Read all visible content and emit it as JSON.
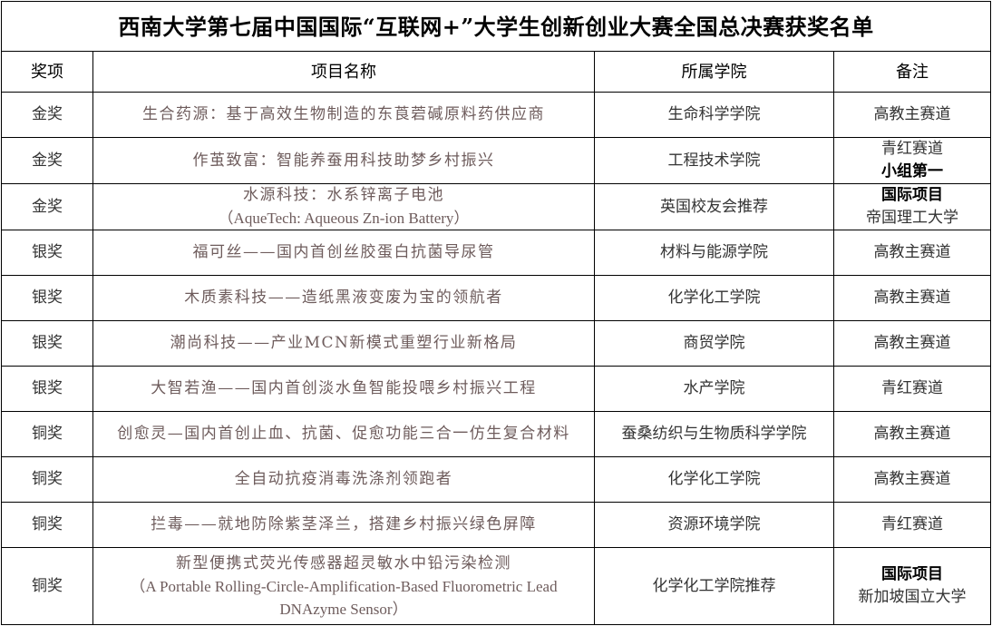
{
  "title": "西南大学第七届中国国际“互联网+”大学生创新创业大赛全国总决赛获奖名单",
  "headers": [
    "奖项",
    "项目名称",
    "所属学院",
    "备注"
  ],
  "rows": [
    {
      "award": "金奖",
      "project": "生合药源：基于高效生物制造的东莨菪碱原料药供应商",
      "project_en": "",
      "college": "生命科学学院",
      "note": "高教主赛道",
      "note2": ""
    },
    {
      "award": "金奖",
      "project": "作茧致富：智能养蚕用科技助梦乡村振兴",
      "project_en": "",
      "college": "工程技术学院",
      "note": "青红赛道",
      "note2": "小组第一"
    },
    {
      "award": "金奖",
      "project": "水源科技：水系锌离子电池",
      "project_en": "（AqueTech: Aqueous Zn-ion Battery）",
      "college": "英国校友会推荐",
      "note": "国际项目",
      "note2": "帝国理工大学"
    },
    {
      "award": "银奖",
      "project": "福可丝——国内首创丝胶蛋白抗菌导尿管",
      "project_en": "",
      "college": "材料与能源学院",
      "note": "高教主赛道",
      "note2": ""
    },
    {
      "award": "银奖",
      "project": "木质素科技——造纸黑液变废为宝的领航者",
      "project_en": "",
      "college": "化学化工学院",
      "note": "高教主赛道",
      "note2": ""
    },
    {
      "award": "银奖",
      "project": "潮尚科技——产业MCN新模式重塑行业新格局",
      "project_en": "",
      "college": "商贸学院",
      "note": "高教主赛道",
      "note2": ""
    },
    {
      "award": "银奖",
      "project": "大智若渔——国内首创淡水鱼智能投喂乡村振兴工程",
      "project_en": "",
      "college": "水产学院",
      "note": "青红赛道",
      "note2": ""
    },
    {
      "award": "铜奖",
      "project": "创愈灵—国内首创止血、抗菌、促愈功能三合一仿生复合材料",
      "project_en": "",
      "college": "蚕桑纺织与生物质科学学院",
      "note": "高教主赛道",
      "note2": ""
    },
    {
      "award": "铜奖",
      "project": "全自动抗疫消毒洗涤剂领跑者",
      "project_en": "",
      "college": "化学化工学院",
      "note": "高教主赛道",
      "note2": ""
    },
    {
      "award": "铜奖",
      "project": "拦毒——就地防除紫茎泽兰，搭建乡村振兴绿色屏障",
      "project_en": "",
      "college": "资源环境学院",
      "note": "青红赛道",
      "note2": ""
    },
    {
      "award": "铜奖",
      "project": "新型便携式荧光传感器超灵敏水中铅污染检测",
      "project_en": "（A Portable Rolling-Circle-Amplification-Based Fluorometric Lead DNAzyme Sensor）",
      "college": "化学化工学院推荐",
      "note": "国际项目",
      "note2": "新加坡国立大学"
    }
  ]
}
